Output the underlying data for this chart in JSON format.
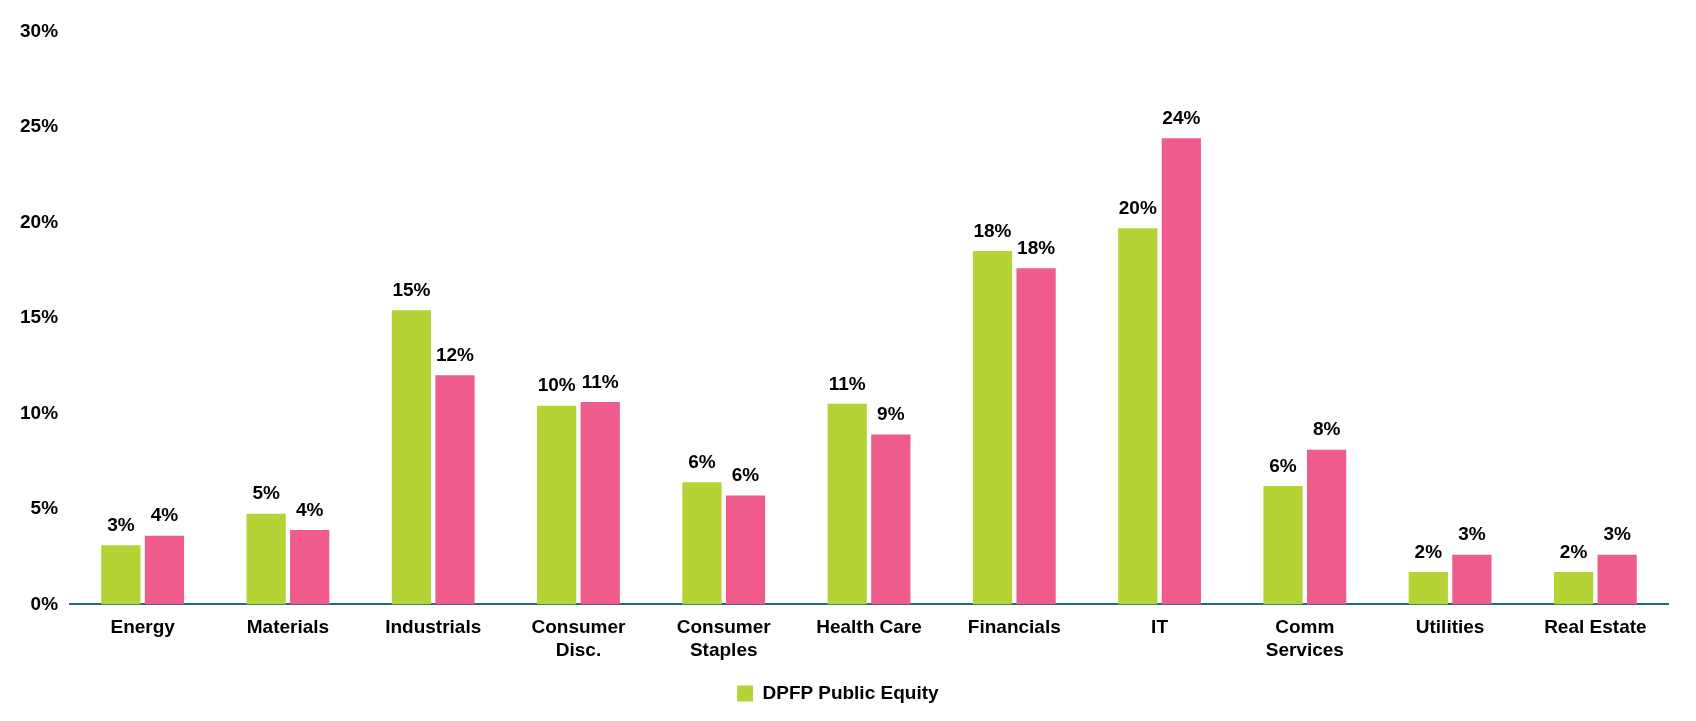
{
  "chart_data": {
    "type": "bar",
    "categories": [
      "Energy",
      "Materials",
      "Industrials",
      "Consumer Disc.",
      "Consumer Staples",
      "Health Care",
      "Financials",
      "IT",
      "Comm Services",
      "Utilities",
      "Real Estate"
    ],
    "series": [
      {
        "name": "DPFP Public Equity",
        "color": "#b5d334",
        "values": [
          3.1,
          4.75,
          15.4,
          10.4,
          6.4,
          10.5,
          18.5,
          19.7,
          6.2,
          1.7,
          1.7
        ],
        "value_labels": [
          "3%",
          "5%",
          "15%",
          "10%",
          "6%",
          "11%",
          "18%",
          "20%",
          "6%",
          "2%",
          "2%"
        ]
      },
      {
        "color": "#ef5b8a",
        "values": [
          3.6,
          3.9,
          12.0,
          10.6,
          5.7,
          8.9,
          17.6,
          24.4,
          8.1,
          2.6,
          2.6
        ],
        "value_labels": [
          "4%",
          "4%",
          "12%",
          "11%",
          "6%",
          "9%",
          "18%",
          "24%",
          "8%",
          "3%",
          "3%"
        ]
      }
    ],
    "ylim": [
      0,
      30
    ],
    "yticks": [
      {
        "value": 0,
        "label": "0%"
      },
      {
        "value": 5,
        "label": "5%"
      },
      {
        "value": 10,
        "label": "10%"
      },
      {
        "value": 15,
        "label": "15%"
      },
      {
        "value": 20,
        "label": "20%"
      },
      {
        "value": 25,
        "label": "25%"
      },
      {
        "value": 30,
        "label": "30%"
      }
    ],
    "grid": false,
    "legend": "bottom"
  }
}
